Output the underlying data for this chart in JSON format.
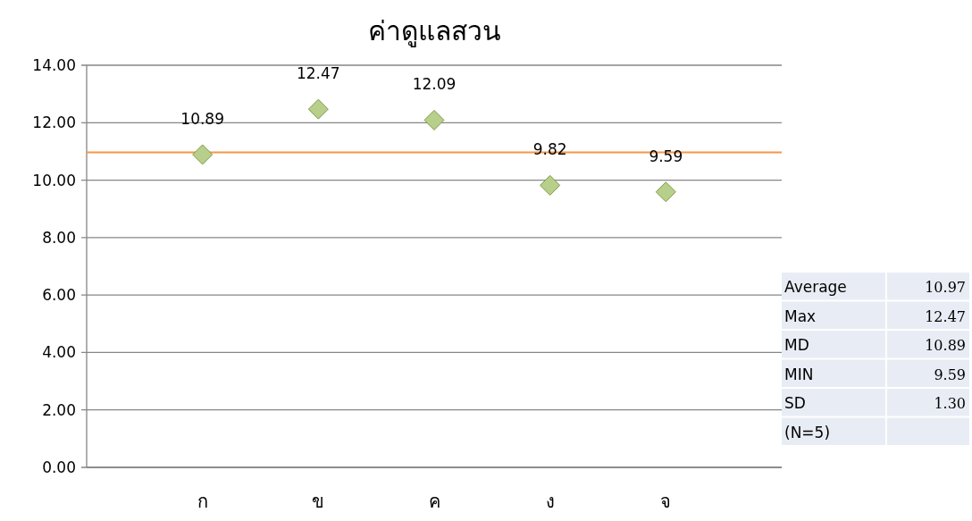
{
  "chart_data": {
    "type": "scatter",
    "title": "ค่าดูแลสวน",
    "categories": [
      "ก",
      "ข",
      "ค",
      "ง",
      "จ"
    ],
    "values": [
      10.89,
      12.47,
      12.09,
      9.82,
      9.59
    ],
    "color": "#b7cf8a",
    "marker": "diamond",
    "data_labels": true,
    "ylim": [
      0,
      14
    ],
    "yticks": [
      {
        "value": 0,
        "label": "0.00"
      },
      {
        "value": 2,
        "label": "2.00"
      },
      {
        "value": 4,
        "label": "4.00"
      },
      {
        "value": 6,
        "label": "6.00"
      },
      {
        "value": 8,
        "label": "8.00"
      },
      {
        "value": 10,
        "label": "10.00"
      },
      {
        "value": 12,
        "label": "12.00"
      },
      {
        "value": 14,
        "label": "14.00"
      }
    ],
    "grid": "y",
    "ref_lines": [
      {
        "axis": "y",
        "value": 10.97,
        "color": "#f79646"
      }
    ],
    "annotations": [
      "Average",
      "10.97",
      "Max",
      "12.47",
      "MD",
      "10.89",
      "MIN",
      "9.59",
      "SD",
      "1.30",
      "(N=5)"
    ]
  }
}
